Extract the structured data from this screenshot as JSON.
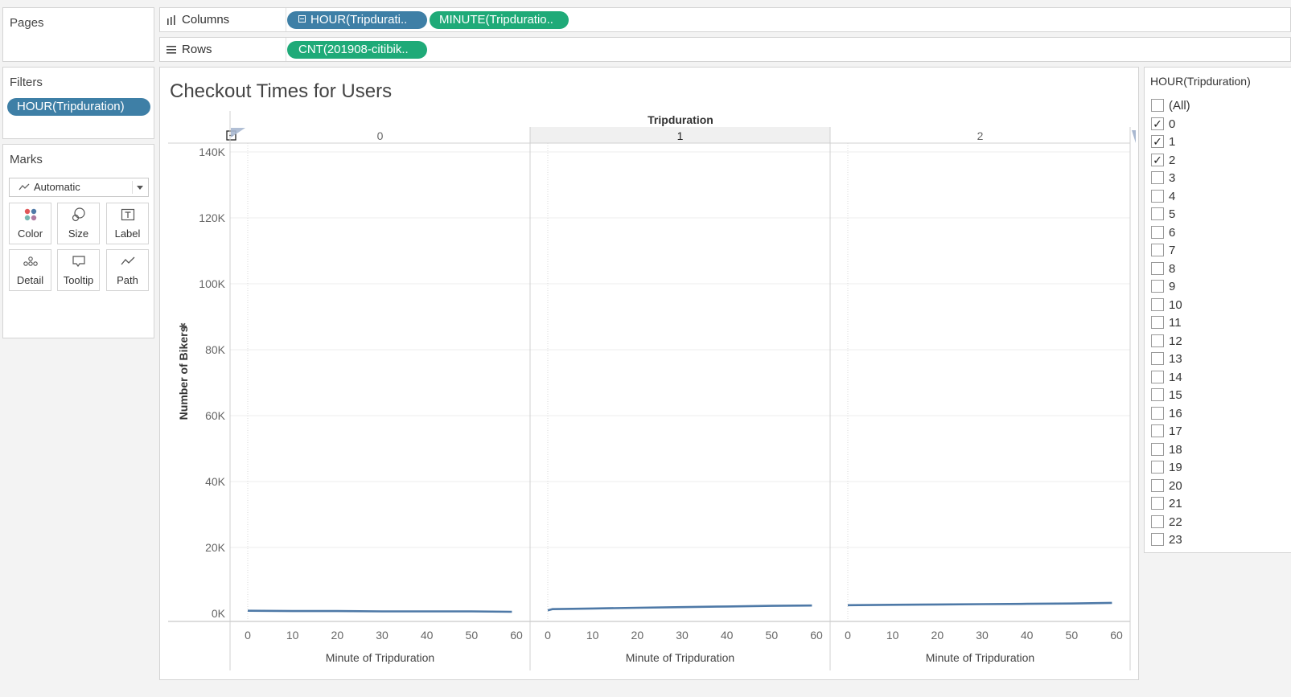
{
  "pages": {
    "title": "Pages"
  },
  "shelves": {
    "columns_label": "Columns",
    "rows_label": "Rows",
    "columns_pills": [
      "HOUR(Tripdurati..",
      "MINUTE(Tripduratio.."
    ],
    "rows_pills": [
      "CNT(201908-citibik.."
    ]
  },
  "filters": {
    "title": "Filters",
    "pill": "HOUR(Tripduration)"
  },
  "marks": {
    "title": "Marks",
    "type_label": "Automatic",
    "buttons": [
      "Color",
      "Size",
      "Label",
      "Detail",
      "Tooltip",
      "Path"
    ]
  },
  "filter_card": {
    "title": "HOUR(Tripduration)",
    "items": [
      {
        "label": "(All)",
        "checked": false
      },
      {
        "label": "0",
        "checked": true
      },
      {
        "label": "1",
        "checked": true
      },
      {
        "label": "2",
        "checked": true
      },
      {
        "label": "3",
        "checked": false
      },
      {
        "label": "4",
        "checked": false
      },
      {
        "label": "5",
        "checked": false
      },
      {
        "label": "6",
        "checked": false
      },
      {
        "label": "7",
        "checked": false
      },
      {
        "label": "8",
        "checked": false
      },
      {
        "label": "9",
        "checked": false
      },
      {
        "label": "10",
        "checked": false
      },
      {
        "label": "11",
        "checked": false
      },
      {
        "label": "12",
        "checked": false
      },
      {
        "label": "13",
        "checked": false
      },
      {
        "label": "14",
        "checked": false
      },
      {
        "label": "15",
        "checked": false
      },
      {
        "label": "16",
        "checked": false
      },
      {
        "label": "17",
        "checked": false
      },
      {
        "label": "18",
        "checked": false
      },
      {
        "label": "19",
        "checked": false
      },
      {
        "label": "20",
        "checked": false
      },
      {
        "label": "21",
        "checked": false
      },
      {
        "label": "22",
        "checked": false
      },
      {
        "label": "23",
        "checked": false
      }
    ]
  },
  "chart_data": {
    "type": "line",
    "title": "Checkout Times for Users",
    "header_label": "Tripduration",
    "panel_labels": [
      "0",
      "1",
      "2"
    ],
    "ylabel": "Number of Bikers",
    "xlabel": "Minute of Tripduration",
    "ylim": [
      0,
      140000
    ],
    "yticks": [
      "0K",
      "20K",
      "40K",
      "60K",
      "80K",
      "100K",
      "120K",
      "140K"
    ],
    "xticks": [
      "0",
      "10",
      "20",
      "30",
      "40",
      "50",
      "60"
    ],
    "xlim": [
      0,
      60
    ],
    "line_color": "#4e79a7",
    "series": [
      {
        "panel": "0",
        "x": [
          0,
          10,
          20,
          30,
          40,
          50,
          59
        ],
        "y": [
          800,
          700,
          700,
          600,
          600,
          600,
          500
        ]
      },
      {
        "panel": "1",
        "x": [
          0,
          1,
          10,
          20,
          30,
          40,
          50,
          59
        ],
        "y": [
          900,
          1300,
          1500,
          1700,
          1900,
          2100,
          2300,
          2400
        ]
      },
      {
        "panel": "2",
        "x": [
          0,
          10,
          20,
          30,
          40,
          50,
          59
        ],
        "y": [
          2500,
          2600,
          2700,
          2800,
          2900,
          3000,
          3200
        ]
      }
    ]
  }
}
